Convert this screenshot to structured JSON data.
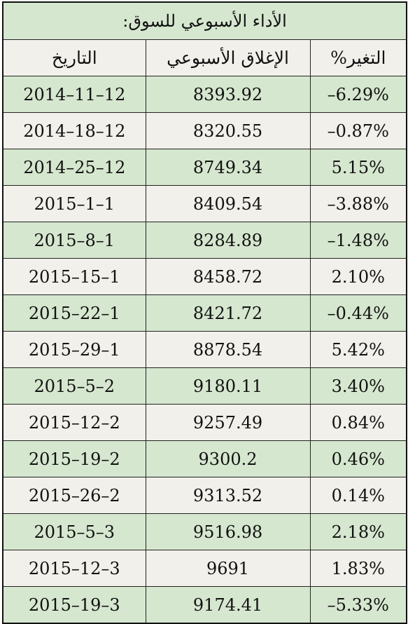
{
  "table": {
    "title": "الأداء الأسبوعي للسوق:",
    "header": [
      "التغير%",
      "الإغلاق الأسبوعي",
      "التاريخ"
    ],
    "rows": [
      [
        "–6.29%",
        "8393.92",
        "2014–11–12"
      ],
      [
        "–0.87%",
        "8320.55",
        "2014–18–12"
      ],
      [
        "5.15%",
        "8749.34",
        "2014–25–12"
      ],
      [
        "–3.88%",
        "8409.54",
        "2015–1–1"
      ],
      [
        "–1.48%",
        "8284.89",
        "2015–8–1"
      ],
      [
        "2.10%",
        "8458.72",
        "2015–15–1"
      ],
      [
        "–0.44%",
        "8421.72",
        "2015–22–1"
      ],
      [
        "5.42%",
        "8878.54",
        "2015–29–1"
      ],
      [
        "3.40%",
        "9180.11",
        "2015–5–2"
      ],
      [
        "0.84%",
        "9257.49",
        "2015–12–2"
      ],
      [
        "0.46%",
        "9300.2",
        "2015–19–2"
      ],
      [
        "0.14%",
        "9313.52",
        "2015–26–2"
      ],
      [
        "2.18%",
        "9516.98",
        "2015–5–3"
      ],
      [
        "1.83%",
        "9691",
        "2015–12–3"
      ],
      [
        "–5.33%",
        "9174.41",
        "2015–19–3"
      ]
    ]
  }
}
